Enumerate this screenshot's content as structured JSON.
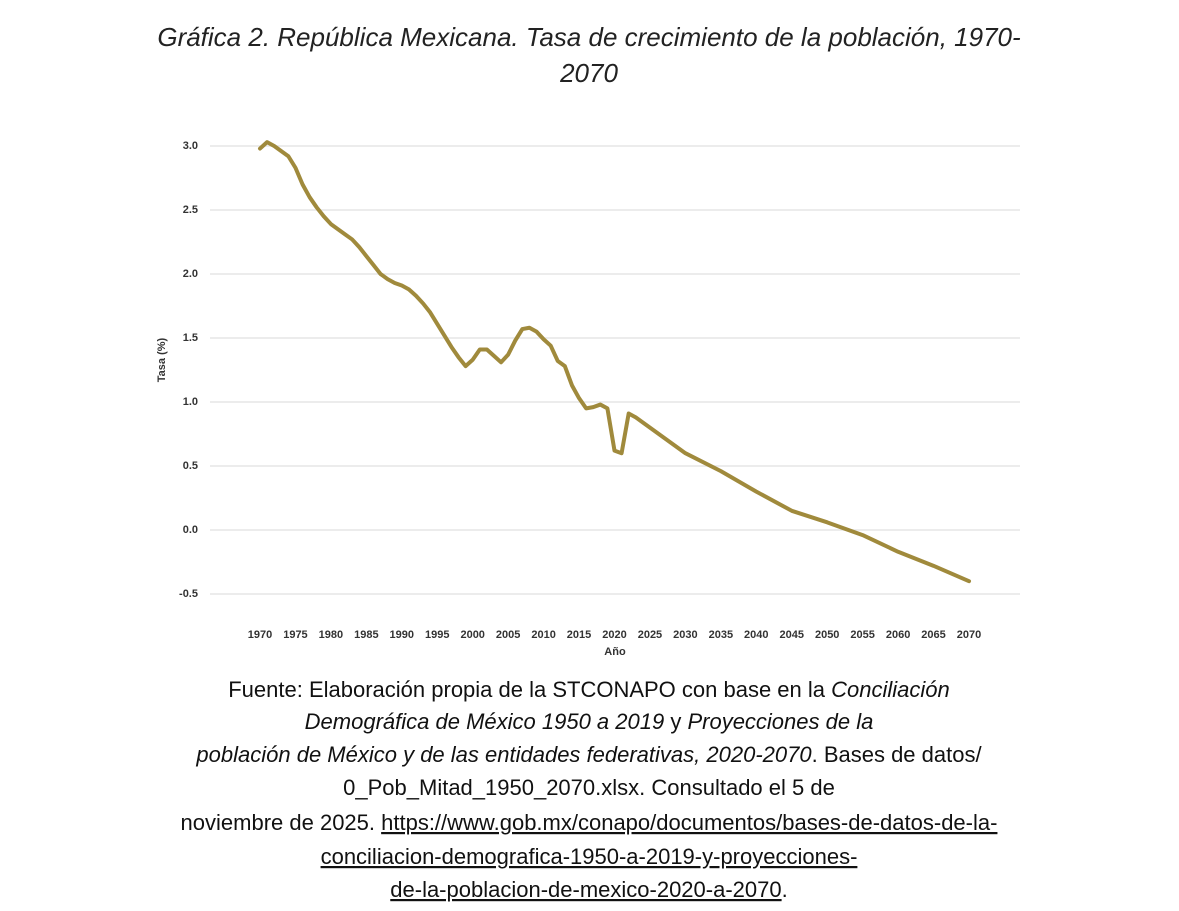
{
  "chart_data": {
    "type": "line",
    "title": [
      "Gráfica 2. República Mexicana. Tasa de crecimiento de la población, 1970-",
      "2070"
    ],
    "x_label": "Año",
    "y_label": "Tasa (%)",
    "x": [
      1970,
      1971,
      1972,
      1973,
      1974,
      1975,
      1976,
      1977,
      1978,
      1979,
      1980,
      1981,
      1982,
      1983,
      1984,
      1985,
      1986,
      1987,
      1988,
      1989,
      1990,
      1991,
      1992,
      1993,
      1994,
      1995,
      1996,
      1997,
      1998,
      1999,
      2000,
      2001,
      2002,
      2003,
      2004,
      2005,
      2006,
      2007,
      2008,
      2009,
      2010,
      2011,
      2012,
      2013,
      2014,
      2015,
      2016,
      2017,
      2018,
      2019,
      2020,
      2021,
      2022,
      2023,
      2024,
      2025,
      2030,
      2035,
      2040,
      2045,
      2050,
      2055,
      2060,
      2065,
      2070
    ],
    "values": [
      2.98,
      3.03,
      3.0,
      2.96,
      2.92,
      2.83,
      2.7,
      2.6,
      2.52,
      2.45,
      2.39,
      2.35,
      2.31,
      2.27,
      2.21,
      2.14,
      2.07,
      2.0,
      1.96,
      1.93,
      1.91,
      1.88,
      1.83,
      1.77,
      1.7,
      1.61,
      1.52,
      1.43,
      1.35,
      1.28,
      1.33,
      1.41,
      1.41,
      1.36,
      1.31,
      1.37,
      1.48,
      1.57,
      1.58,
      1.55,
      1.49,
      1.44,
      1.32,
      1.28,
      1.13,
      1.03,
      0.95,
      0.96,
      0.98,
      0.95,
      0.62,
      0.6,
      0.91,
      0.88,
      0.84,
      0.8,
      0.6,
      0.46,
      0.3,
      0.15,
      0.06,
      -0.04,
      -0.17,
      -0.28,
      -0.4
    ],
    "color": "#a08a3c",
    "xlim": [
      1970,
      2070
    ],
    "xticks": [
      1970,
      1975,
      1980,
      1985,
      1990,
      1995,
      2000,
      2005,
      2010,
      2015,
      2020,
      2025,
      2030,
      2035,
      2040,
      2045,
      2050,
      2055,
      2060,
      2065,
      2070
    ],
    "ylim": [
      -0.5,
      3.25
    ],
    "yticks": [
      {
        "value": 3,
        "label": "3.0"
      },
      2.5,
      {
        "value": 2,
        "label": "2.0"
      },
      1.5,
      {
        "value": 1,
        "label": "1.0"
      },
      0.5,
      {
        "value": 0,
        "label": "0.0"
      },
      -0.5
    ],
    "grid": true
  },
  "source_lines": [
    [
      "Fuente: Elaboración propia de la STCONAPO con base en la ",
      "Conciliación"
    ],
    [
      "Demográfica de México 1950 a 2019",
      " y ",
      "Proyecciones de la"
    ],
    [
      "población de México y de las entidades federativas, 2020-2070",
      ". Bases de datos/"
    ],
    [
      "0_Pob_Mitad_1950_2070.xlsx. Consultado el 5 de"
    ],
    [
      "noviembre de 2025. ",
      "https://www.gob.mx/conapo/documentos/bases-de-datos-de-la-"
    ],
    [
      "conciliacion-demografica-1950-a-2019-y-proyecciones-"
    ],
    [
      "de-la-poblacion-de-mexico-2020-a-2070",
      "."
    ]
  ]
}
